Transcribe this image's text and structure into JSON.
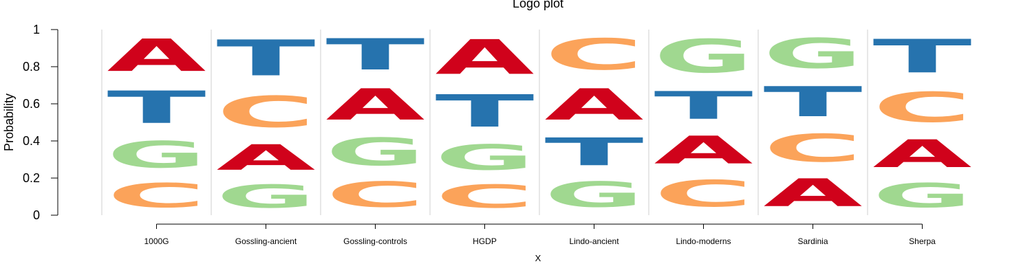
{
  "chart_data": {
    "type": "logo",
    "title": "Logo plot",
    "xlabel": "X",
    "ylabel": "Probability",
    "ylim": [
      0,
      1
    ],
    "yticks": [
      "0",
      "0.2",
      "0.4",
      "0.6",
      "0.8",
      "1"
    ],
    "categories": [
      "1000G",
      "Gossling-ancient",
      "Gossling-controls",
      "HGDP",
      "Lindo-ancient",
      "Lindo-moderns",
      "Sardinia",
      "Sherpa"
    ],
    "colors": {
      "A": "#d0021b",
      "C": "#fba35a",
      "G": "#a0d890",
      "T": "#2673ae"
    },
    "stacks": [
      [
        {
          "letter": "C",
          "value": 0.21
        },
        {
          "letter": "G",
          "value": 0.23
        },
        {
          "letter": "T",
          "value": 0.28
        },
        {
          "letter": "A",
          "value": 0.28
        }
      ],
      [
        {
          "letter": "G",
          "value": 0.2
        },
        {
          "letter": "A",
          "value": 0.22
        },
        {
          "letter": "C",
          "value": 0.27
        },
        {
          "letter": "T",
          "value": 0.31
        }
      ],
      [
        {
          "letter": "C",
          "value": 0.22
        },
        {
          "letter": "G",
          "value": 0.24
        },
        {
          "letter": "A",
          "value": 0.27
        },
        {
          "letter": "T",
          "value": 0.27
        }
      ],
      [
        {
          "letter": "C",
          "value": 0.2
        },
        {
          "letter": "G",
          "value": 0.22
        },
        {
          "letter": "T",
          "value": 0.28
        },
        {
          "letter": "A",
          "value": 0.3
        }
      ],
      [
        {
          "letter": "G",
          "value": 0.22
        },
        {
          "letter": "T",
          "value": 0.24
        },
        {
          "letter": "A",
          "value": 0.27
        },
        {
          "letter": "C",
          "value": 0.27
        }
      ],
      [
        {
          "letter": "C",
          "value": 0.23
        },
        {
          "letter": "A",
          "value": 0.24
        },
        {
          "letter": "T",
          "value": 0.24
        },
        {
          "letter": "G",
          "value": 0.29
        }
      ],
      [
        {
          "letter": "A",
          "value": 0.24
        },
        {
          "letter": "C",
          "value": 0.24
        },
        {
          "letter": "T",
          "value": 0.26
        },
        {
          "letter": "G",
          "value": 0.26
        }
      ],
      [
        {
          "letter": "G",
          "value": 0.21
        },
        {
          "letter": "A",
          "value": 0.24
        },
        {
          "letter": "C",
          "value": 0.26
        },
        {
          "letter": "T",
          "value": 0.29
        }
      ]
    ]
  }
}
